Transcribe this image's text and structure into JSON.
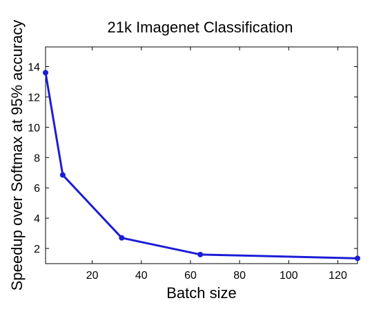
{
  "chart_data": {
    "type": "line",
    "title": "21k Imagenet Classification",
    "xlabel": "Batch size",
    "ylabel": "Speedup over Softmax at 95% accuracy",
    "xlim": [
      1,
      128
    ],
    "ylim": [
      1,
      15.3
    ],
    "x_ticks": [
      20,
      40,
      60,
      80,
      100,
      120
    ],
    "y_ticks": [
      2,
      4,
      6,
      8,
      10,
      12,
      14
    ],
    "grid": false,
    "series": [
      {
        "x": [
          1,
          8,
          32,
          64,
          128
        ],
        "values": [
          13.6,
          6.85,
          2.7,
          1.6,
          1.35
        ],
        "color": "#1c1cd6"
      }
    ]
  }
}
